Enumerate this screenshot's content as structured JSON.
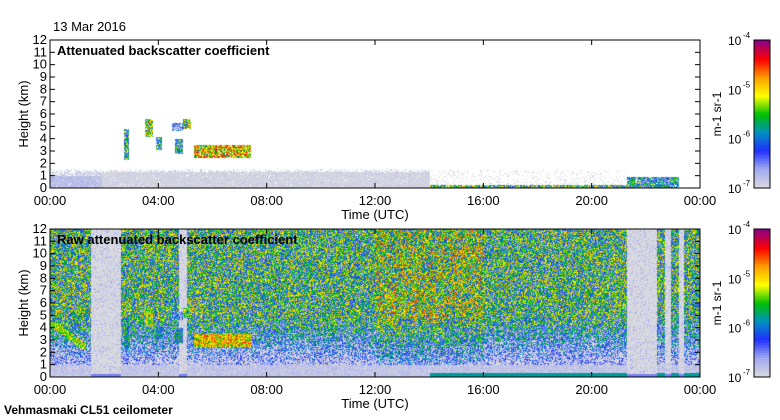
{
  "date_label": "13 Mar 2016",
  "footer": "Vehmasmaki CL51 ceilometer",
  "colors": {
    "scale": [
      "#d8d8e0",
      "#a0a8f0",
      "#2030ff",
      "#0090c0",
      "#00c000",
      "#ffff00",
      "#ffa000",
      "#ff0000",
      "#900080"
    ]
  },
  "chart_data": [
    {
      "type": "heatmap",
      "title": "Attenuated backscatter coefficient",
      "xlabel": "Time (UTC)",
      "ylabel": "Height (km)",
      "xlim": [
        0,
        24
      ],
      "ylim": [
        0,
        12
      ],
      "xticks": [
        "00:00",
        "04:00",
        "08:00",
        "12:00",
        "16:00",
        "20:00",
        "00:00"
      ],
      "yticks": [
        "0",
        "1",
        "2",
        "3",
        "4",
        "5",
        "6",
        "7",
        "8",
        "9",
        "10",
        "11",
        "12"
      ],
      "colorbar": {
        "label": "m-1 sr-1",
        "ticks": [
          "10",
          "10",
          "10",
          "10"
        ],
        "exponents": [
          "-7",
          "-6",
          "-5",
          "-4"
        ],
        "range_log10": [
          -7,
          -4
        ]
      },
      "features": [
        {
          "t0": 0,
          "t1": 1.9,
          "h0": 0,
          "h1": 1.0,
          "log_value": -6.8
        },
        {
          "t0": 1.9,
          "t1": 14,
          "h0": 0,
          "h1": 1.3,
          "log_value": -7.0
        },
        {
          "t0": 2.7,
          "t1": 2.9,
          "h0": 2.3,
          "h1": 4.8,
          "log_value": -5.8
        },
        {
          "t0": 3.5,
          "t1": 3.8,
          "h0": 4.2,
          "h1": 5.6,
          "log_value": -5.3
        },
        {
          "t0": 3.9,
          "t1": 4.1,
          "h0": 3.1,
          "h1": 4.2,
          "log_value": -6.0
        },
        {
          "t0": 4.5,
          "t1": 4.9,
          "h0": 4.7,
          "h1": 5.3,
          "log_value": -6.4
        },
        {
          "t0": 4.9,
          "t1": 5.2,
          "h0": 4.8,
          "h1": 5.6,
          "log_value": -5.5
        },
        {
          "t0": 4.6,
          "t1": 4.9,
          "h0": 2.8,
          "h1": 4.0,
          "log_value": -6.0
        },
        {
          "t0": 5.3,
          "t1": 7.4,
          "h0": 2.5,
          "h1": 3.5,
          "log_value": -5.0
        },
        {
          "t0": 14,
          "t1": 21.3,
          "h0": 0,
          "h1": 0.3,
          "log_value": -5.5
        },
        {
          "t0": 21.3,
          "t1": 23.2,
          "h0": 0,
          "h1": 0.9,
          "log_value": -6.0
        }
      ]
    },
    {
      "type": "heatmap",
      "title": "Raw attenuated backscatter coefficient",
      "xlabel": "Time (UTC)",
      "ylabel": "Height (km)",
      "xlim": [
        0,
        24
      ],
      "ylim": [
        0,
        12
      ],
      "xticks": [
        "00:00",
        "04:00",
        "08:00",
        "12:00",
        "16:00",
        "20:00",
        "00:00"
      ],
      "yticks": [
        "0",
        "1",
        "2",
        "3",
        "4",
        "5",
        "6",
        "7",
        "8",
        "9",
        "10",
        "11",
        "12"
      ],
      "colorbar": {
        "label": "m-1 sr-1",
        "ticks": [
          "10",
          "10",
          "10",
          "10"
        ],
        "exponents": [
          "-7",
          "-6",
          "-5",
          "-4"
        ],
        "range_log10": [
          -7,
          -4
        ]
      },
      "noise_gaps": [
        [
          1.5,
          2.6
        ],
        [
          4.75,
          5.05
        ],
        [
          21.3,
          22.4
        ],
        [
          22.7,
          22.9
        ],
        [
          23.2,
          23.4
        ]
      ]
    }
  ]
}
